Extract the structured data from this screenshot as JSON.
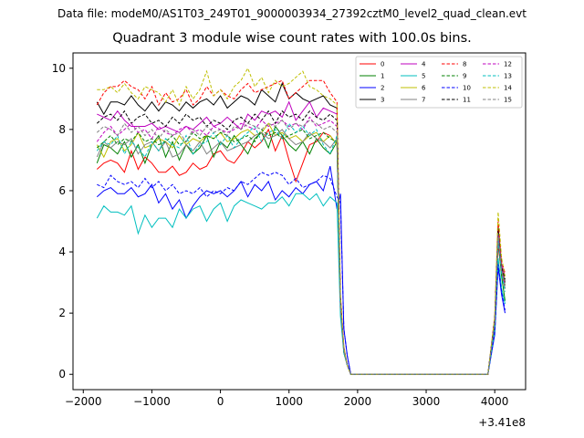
{
  "header": {
    "suptitle": "Data file: modeM0/AS1T03_249T01_9000003934_27392cztM0_level2_quad_clean.evt",
    "title": "Quadrant 3 module wise count rates with 100.0s bins."
  },
  "chart_data": {
    "type": "line",
    "offset_label": "+3.41e8",
    "xlim": [
      -2150,
      4450
    ],
    "ylim": [
      -0.5,
      10.5
    ],
    "xticks": [
      -2000,
      -1000,
      0,
      1000,
      2000,
      3000,
      4000
    ],
    "xtick_labels": [
      "−2000",
      "−1000",
      "0",
      "1000",
      "2000",
      "3000",
      "4000"
    ],
    "yticks": [
      0,
      2,
      4,
      6,
      8,
      10
    ],
    "legend_loc": "upper right",
    "legend_ncol": 4,
    "x": [
      -1800,
      -1700,
      -1600,
      -1500,
      -1400,
      -1300,
      -1200,
      -1100,
      -1000,
      -900,
      -800,
      -700,
      -600,
      -500,
      -400,
      -300,
      -200,
      -100,
      0,
      100,
      200,
      300,
      400,
      500,
      600,
      700,
      800,
      900,
      1000,
      1100,
      1200,
      1300,
      1400,
      1500,
      1600,
      1700,
      1750,
      1800,
      1850,
      1900,
      2000,
      2500,
      3000,
      3500,
      3900,
      4000,
      4050,
      4100,
      4150
    ],
    "series": [
      {
        "name": "0",
        "color": "#ff0000",
        "dash": false,
        "values": [
          6.7,
          6.9,
          7.0,
          6.9,
          6.6,
          7.3,
          6.7,
          7.1,
          6.9,
          6.6,
          6.6,
          6.8,
          6.5,
          6.6,
          6.9,
          6.7,
          6.8,
          7.2,
          7.3,
          7.0,
          6.9,
          7.2,
          7.6,
          7.4,
          7.6,
          8.0,
          7.3,
          7.8,
          7.0,
          6.3,
          6.9,
          7.5,
          7.6,
          7.9,
          7.8,
          7.5,
          2.3,
          0.8,
          0.3,
          0.0,
          0.0,
          0.0,
          0.0,
          0.0,
          0.0,
          1.6,
          4.2,
          3.3,
          2.8
        ]
      },
      {
        "name": "1",
        "color": "#008000",
        "dash": false,
        "values": [
          6.9,
          7.5,
          7.4,
          7.2,
          7.6,
          7.1,
          7.5,
          6.9,
          7.5,
          7.8,
          7.1,
          7.6,
          7.0,
          7.5,
          7.2,
          7.4,
          7.8,
          7.1,
          7.6,
          7.4,
          7.8,
          7.5,
          7.2,
          7.7,
          7.9,
          7.4,
          8.1,
          7.8,
          7.5,
          7.3,
          7.6,
          7.2,
          7.7,
          7.4,
          7.2,
          7.6,
          2.2,
          0.7,
          0.3,
          0.0,
          0.0,
          0.0,
          0.0,
          0.0,
          0.0,
          1.7,
          4.4,
          3.2,
          2.4
        ]
      },
      {
        "name": "2",
        "color": "#0000ff",
        "dash": false,
        "values": [
          5.8,
          6.0,
          6.1,
          5.9,
          5.9,
          6.1,
          5.8,
          5.9,
          6.2,
          5.6,
          5.9,
          5.4,
          5.7,
          5.1,
          5.5,
          5.8,
          6.0,
          5.9,
          6.0,
          5.8,
          6.0,
          6.3,
          5.8,
          6.2,
          6.0,
          6.3,
          5.7,
          6.0,
          5.8,
          6.1,
          5.9,
          6.2,
          6.3,
          6.0,
          6.8,
          5.4,
          5.9,
          1.5,
          0.6,
          0.0,
          0.0,
          0.0,
          0.0,
          0.0,
          0.0,
          1.3,
          3.5,
          2.6,
          2.0
        ]
      },
      {
        "name": "3",
        "color": "#000000",
        "dash": false,
        "values": [
          8.9,
          8.5,
          8.9,
          8.9,
          8.8,
          9.1,
          8.8,
          8.6,
          8.9,
          8.6,
          8.9,
          8.8,
          8.6,
          8.9,
          8.7,
          8.9,
          9.0,
          8.8,
          9.1,
          8.7,
          8.9,
          9.1,
          9.0,
          8.8,
          9.3,
          9.1,
          8.9,
          9.5,
          9.0,
          9.2,
          9.0,
          8.9,
          9.0,
          9.1,
          8.8,
          8.7,
          2.4,
          0.8,
          0.3,
          0.0,
          0.0,
          0.0,
          0.0,
          0.0,
          0.0,
          1.8,
          4.8,
          3.5,
          3.0
        ]
      },
      {
        "name": "4",
        "color": "#bf00bf",
        "dash": false,
        "values": [
          8.5,
          8.4,
          8.3,
          8.6,
          8.3,
          8.1,
          8.1,
          8.1,
          8.2,
          8.0,
          8.1,
          8.0,
          7.9,
          8.1,
          8.0,
          8.2,
          8.4,
          8.1,
          8.2,
          8.4,
          8.2,
          8.0,
          8.5,
          8.3,
          8.6,
          8.5,
          8.6,
          8.4,
          8.9,
          8.3,
          8.6,
          8.9,
          8.4,
          8.7,
          8.6,
          8.5,
          2.3,
          0.8,
          0.3,
          0.0,
          0.0,
          0.0,
          0.0,
          0.0,
          0.0,
          1.7,
          4.6,
          3.6,
          3.2
        ]
      },
      {
        "name": "5",
        "color": "#00bfbf",
        "dash": false,
        "values": [
          5.1,
          5.5,
          5.3,
          5.3,
          5.2,
          5.5,
          4.6,
          5.2,
          4.8,
          5.1,
          5.1,
          4.8,
          5.4,
          5.1,
          5.4,
          5.5,
          5.0,
          5.4,
          5.6,
          5.0,
          5.5,
          5.7,
          5.6,
          5.5,
          5.4,
          5.6,
          5.6,
          5.8,
          5.5,
          5.9,
          5.9,
          5.7,
          5.9,
          5.5,
          5.8,
          5.6,
          1.9,
          0.7,
          0.3,
          0.0,
          0.0,
          0.0,
          0.0,
          0.0,
          0.0,
          1.4,
          3.8,
          2.8,
          2.3
        ]
      },
      {
        "name": "6",
        "color": "#bfbf00",
        "dash": false,
        "values": [
          7.5,
          7.1,
          7.6,
          7.7,
          7.3,
          7.5,
          7.9,
          7.4,
          7.5,
          7.7,
          7.6,
          7.4,
          7.8,
          7.5,
          7.7,
          7.6,
          7.8,
          7.7,
          7.9,
          7.6,
          7.7,
          7.9,
          8.0,
          7.8,
          7.9,
          8.2,
          7.8,
          7.9,
          7.7,
          7.8,
          7.6,
          7.8,
          7.9,
          7.6,
          7.8,
          7.5,
          2.3,
          0.8,
          0.3,
          0.0,
          0.0,
          0.0,
          0.0,
          0.0,
          0.0,
          1.8,
          4.6,
          3.5,
          2.9
        ]
      },
      {
        "name": "7",
        "color": "#808080",
        "dash": false,
        "values": [
          7.1,
          7.6,
          7.4,
          7.6,
          7.5,
          7.7,
          7.2,
          7.5,
          7.6,
          7.3,
          7.6,
          7.1,
          7.2,
          7.5,
          7.3,
          7.6,
          7.2,
          7.4,
          7.6,
          7.3,
          7.4,
          7.5,
          7.6,
          7.8,
          7.9,
          7.7,
          7.8,
          8.0,
          7.7,
          7.5,
          7.6,
          7.9,
          7.7,
          7.6,
          7.4,
          7.7,
          2.2,
          0.8,
          0.3,
          0.0,
          0.0,
          0.0,
          0.0,
          0.0,
          0.0,
          1.7,
          4.4,
          3.4,
          2.8
        ]
      },
      {
        "name": "8",
        "color": "#ff0000",
        "dash": true,
        "values": [
          8.8,
          9.2,
          9.4,
          9.4,
          9.6,
          9.4,
          9.3,
          9.0,
          9.4,
          8.8,
          9.2,
          8.9,
          9.0,
          9.3,
          8.8,
          9.0,
          9.4,
          9.1,
          9.3,
          9.1,
          9.0,
          9.3,
          9.5,
          9.2,
          9.3,
          9.4,
          9.5,
          9.6,
          9.0,
          9.2,
          9.4,
          9.6,
          9.6,
          9.6,
          9.2,
          8.9,
          2.6,
          0.9,
          0.3,
          0.0,
          0.0,
          0.0,
          0.0,
          0.0,
          0.0,
          1.9,
          5.0,
          3.7,
          3.3
        ]
      },
      {
        "name": "9",
        "color": "#008000",
        "dash": true,
        "values": [
          7.4,
          7.6,
          7.8,
          7.5,
          7.7,
          7.6,
          7.9,
          7.6,
          7.7,
          7.5,
          7.6,
          7.8,
          7.5,
          7.6,
          7.9,
          7.7,
          7.8,
          7.7,
          7.9,
          7.8,
          7.6,
          7.7,
          7.8,
          7.6,
          8.0,
          7.8,
          7.9,
          7.7,
          7.8,
          7.9,
          8.0,
          7.7,
          7.8,
          7.9,
          7.7,
          7.6,
          2.3,
          0.8,
          0.3,
          0.0,
          0.0,
          0.0,
          0.0,
          0.0,
          0.0,
          1.7,
          4.5,
          3.4,
          2.9
        ]
      },
      {
        "name": "10",
        "color": "#0000ff",
        "dash": true,
        "values": [
          6.2,
          6.1,
          6.5,
          6.3,
          6.2,
          6.3,
          6.1,
          6.4,
          6.1,
          6.3,
          6.0,
          6.2,
          5.9,
          6.0,
          5.9,
          6.1,
          5.8,
          6.0,
          5.9,
          6.1,
          6.0,
          6.3,
          6.2,
          6.4,
          6.6,
          6.5,
          6.6,
          6.5,
          6.2,
          6.4,
          6.1,
          6.2,
          6.3,
          6.5,
          6.4,
          5.8,
          5.6,
          1.5,
          0.6,
          0.0,
          0.0,
          0.0,
          0.0,
          0.0,
          0.0,
          1.4,
          3.6,
          2.7,
          2.1
        ]
      },
      {
        "name": "11",
        "color": "#000000",
        "dash": true,
        "values": [
          8.2,
          8.4,
          8.5,
          8.3,
          8.6,
          8.2,
          8.4,
          8.5,
          8.2,
          8.3,
          8.1,
          8.4,
          8.2,
          8.5,
          8.3,
          8.4,
          8.1,
          8.3,
          8.2,
          8.0,
          8.3,
          8.4,
          8.2,
          8.5,
          8.3,
          8.6,
          8.2,
          8.6,
          8.4,
          8.5,
          8.3,
          8.6,
          8.4,
          8.3,
          8.5,
          8.3,
          2.4,
          0.8,
          0.3,
          0.0,
          0.0,
          0.0,
          0.0,
          0.0,
          0.0,
          1.8,
          4.7,
          3.5,
          3.1
        ]
      },
      {
        "name": "12",
        "color": "#bf00bf",
        "dash": true,
        "values": [
          7.6,
          7.9,
          8.1,
          7.8,
          8.0,
          8.2,
          7.9,
          8.0,
          7.7,
          8.1,
          7.9,
          7.8,
          8.0,
          8.1,
          7.9,
          8.0,
          7.8,
          8.1,
          8.0,
          7.9,
          8.0,
          8.2,
          8.1,
          8.0,
          8.3,
          8.1,
          8.2,
          8.3,
          8.1,
          8.2,
          8.0,
          8.4,
          8.1,
          8.2,
          8.3,
          8.1,
          2.3,
          0.8,
          0.3,
          0.0,
          0.0,
          0.0,
          0.0,
          0.0,
          0.0,
          1.8,
          4.6,
          3.4,
          2.9
        ]
      },
      {
        "name": "13",
        "color": "#00bfbf",
        "dash": true,
        "values": [
          7.3,
          7.6,
          7.5,
          7.8,
          7.2,
          7.6,
          7.4,
          7.1,
          7.6,
          7.3,
          7.7,
          7.5,
          7.4,
          7.8,
          7.2,
          7.5,
          7.6,
          7.9,
          7.5,
          7.8,
          7.4,
          7.7,
          7.9,
          8.1,
          7.6,
          7.9,
          8.0,
          7.7,
          8.2,
          7.9,
          8.1,
          7.8,
          8.0,
          7.5,
          7.2,
          7.8,
          2.2,
          0.8,
          0.3,
          0.0,
          0.0,
          0.0,
          0.0,
          0.0,
          0.0,
          1.7,
          4.4,
          3.3,
          2.7
        ]
      },
      {
        "name": "14",
        "color": "#bfbf00",
        "dash": true,
        "values": [
          9.3,
          9.3,
          9.4,
          9.2,
          9.5,
          9.2,
          9.0,
          9.4,
          9.3,
          9.2,
          8.9,
          9.3,
          8.8,
          9.4,
          9.0,
          9.3,
          9.9,
          9.1,
          9.3,
          9.0,
          9.4,
          9.6,
          10.0,
          9.4,
          9.7,
          9.2,
          9.6,
          9.4,
          9.5,
          9.7,
          9.9,
          9.4,
          9.3,
          9.1,
          9.0,
          8.8,
          2.6,
          0.9,
          0.3,
          0.0,
          0.0,
          0.0,
          0.0,
          0.0,
          0.0,
          1.9,
          5.3,
          3.8,
          3.2
        ]
      },
      {
        "name": "15",
        "color": "#808080",
        "dash": true,
        "values": [
          7.9,
          8.1,
          8.0,
          7.8,
          8.2,
          7.9,
          8.1,
          7.8,
          8.0,
          7.7,
          8.0,
          7.8,
          7.9,
          7.6,
          8.0,
          7.8,
          8.1,
          7.9,
          8.0,
          7.8,
          8.1,
          8.0,
          8.2,
          8.1,
          8.0,
          8.2,
          8.1,
          8.3,
          8.0,
          8.2,
          8.1,
          8.3,
          8.2,
          8.0,
          8.1,
          7.9,
          2.3,
          0.8,
          0.3,
          0.0,
          0.0,
          0.0,
          0.0,
          0.0,
          0.0,
          1.7,
          4.6,
          3.4,
          2.9
        ]
      }
    ]
  }
}
